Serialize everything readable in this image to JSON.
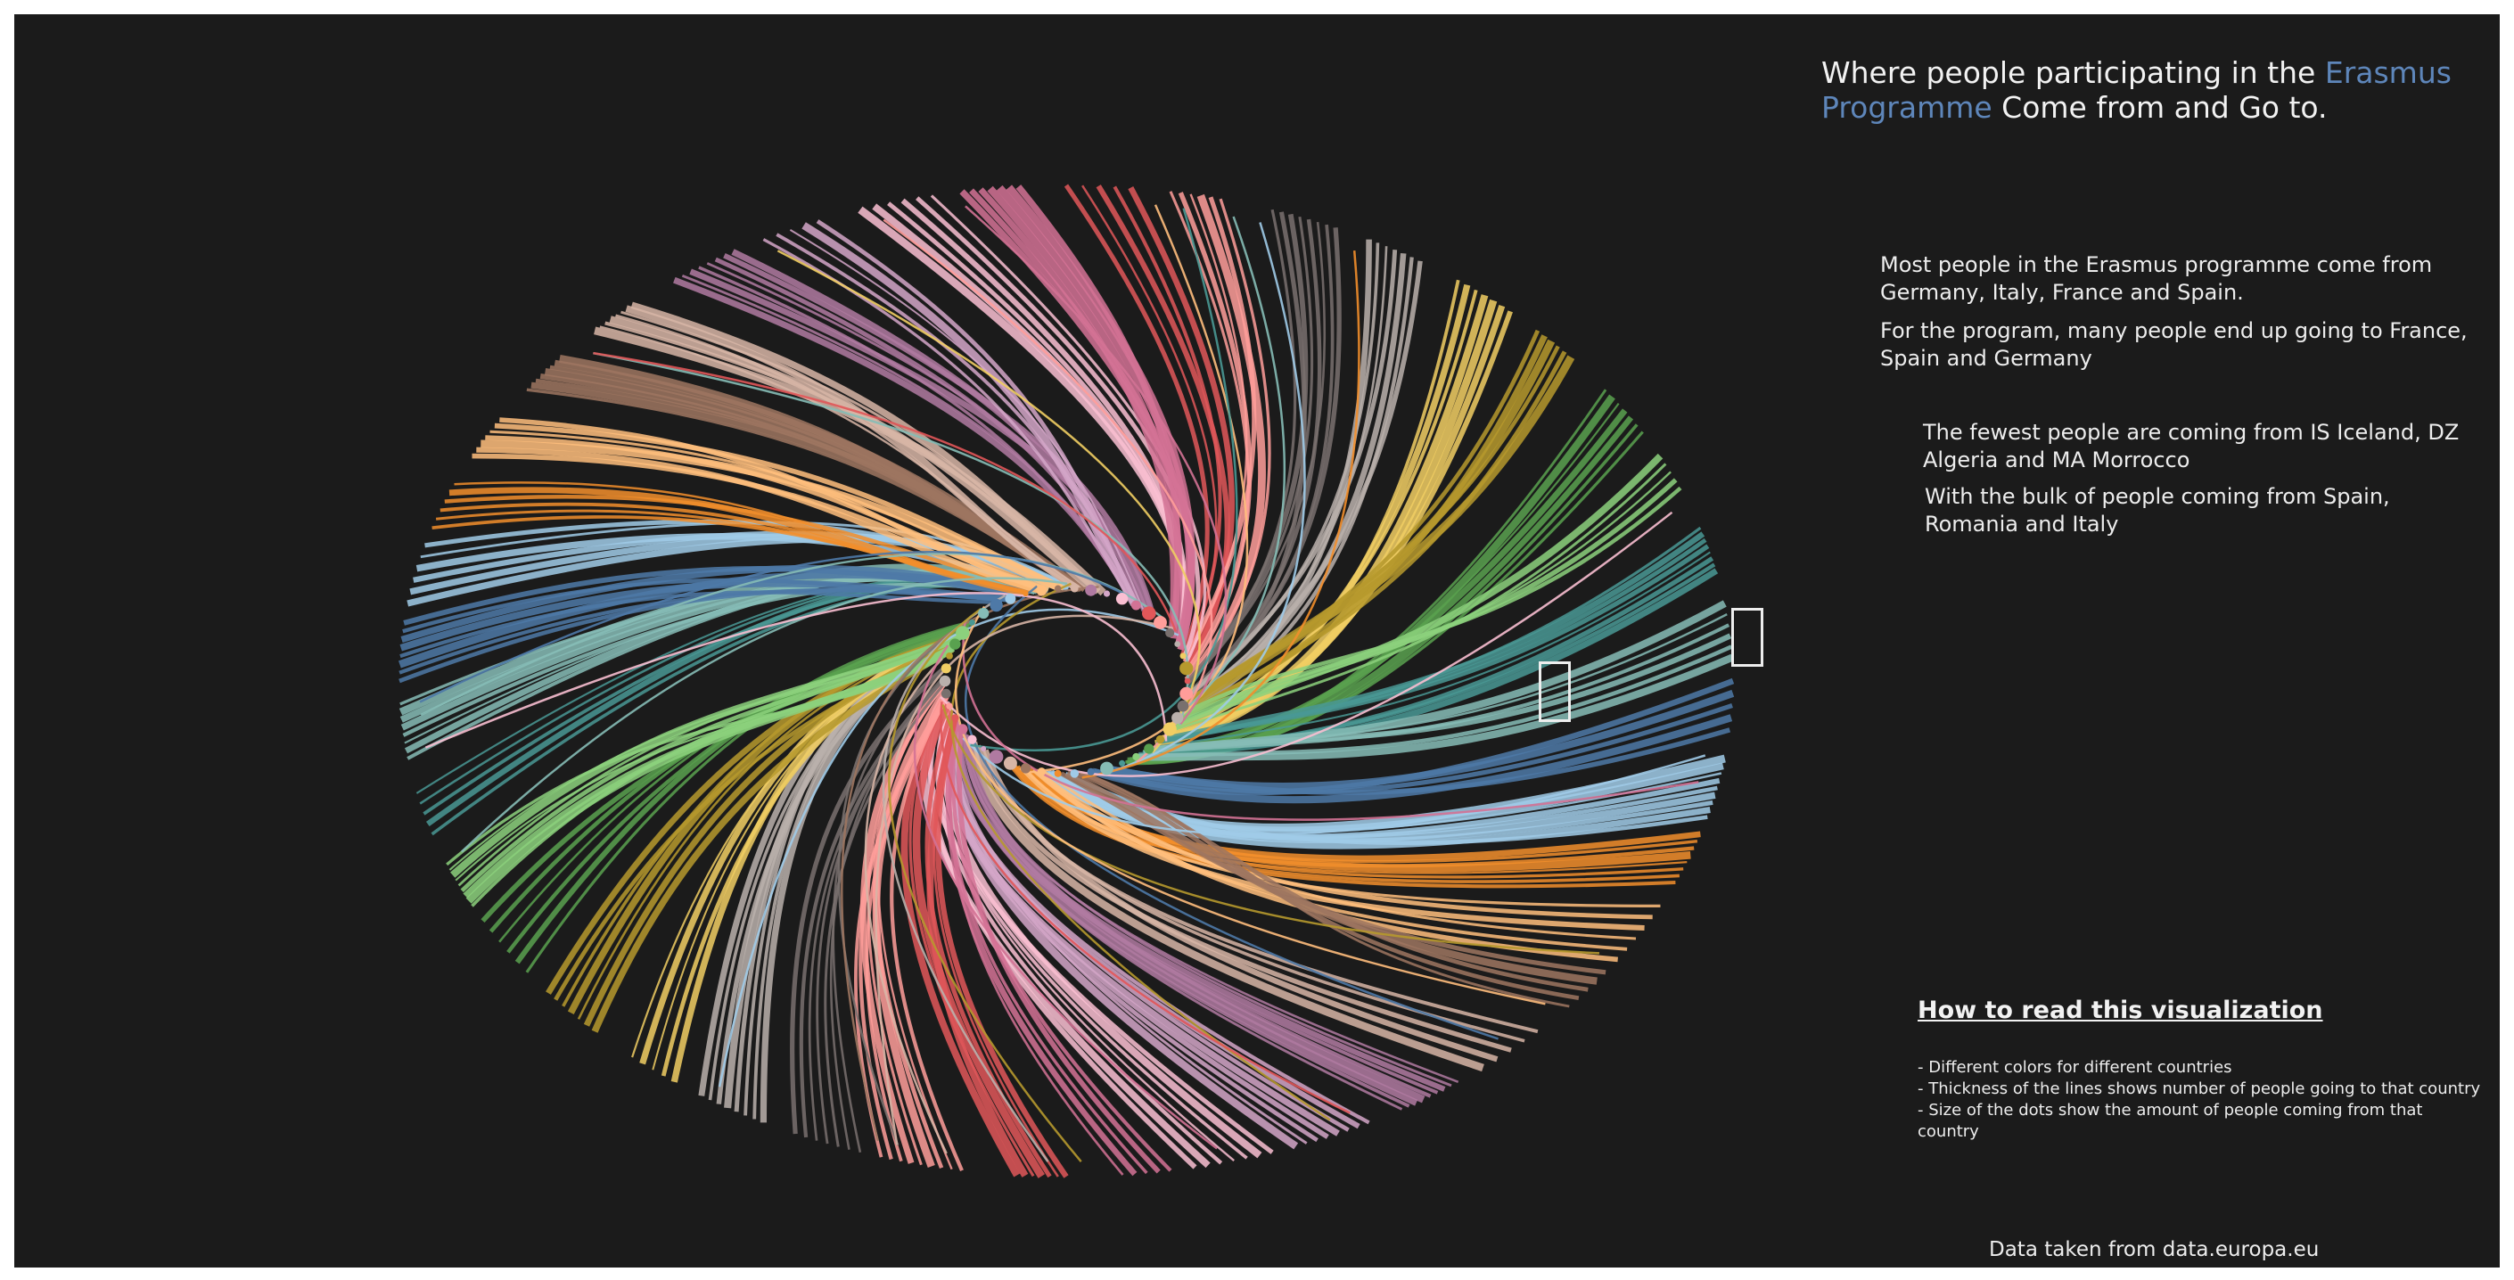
{
  "title": {
    "before": "Where people participating in the ",
    "highlight": "Erasmus Programme",
    "after": " Come from and Go to.",
    "highlight_color": "#5e86ba"
  },
  "paragraphs": [
    "Most people in the Erasmus programme come from Germany, Italy, France and Spain.",
    "For the program, many people end up going to France, Spain and Germany",
    "The fewest people are coming from IS Iceland, DZ Algeria and MA Morrocco",
    "With the bulk of people coming from Spain, Romania and Italy"
  ],
  "howto": {
    "title": "How to read this visualization",
    "items": [
      "- Different colors for different countries",
      "- Thickness of the lines shows number of people going to that country",
      "- Size of the dots show the amount of people coming from that country"
    ]
  },
  "source": "Data taken from data.europa.eu",
  "colors": {
    "background": "#1b1b1b",
    "palette": [
      "#e15759",
      "#ff9d9a",
      "#79706e",
      "#bab0ac",
      "#f1ce63",
      "#b6992d",
      "#59a14f",
      "#8cd17d",
      "#499894",
      "#86bcb6",
      "#4e79a7",
      "#a0cbe8",
      "#f28e2b",
      "#ffbe7d",
      "#9d7660",
      "#d7b5a6",
      "#b07aa1",
      "#d4a6c8",
      "#fabfd2",
      "#d37295"
    ]
  },
  "icons": [
    "missing-glyph-icon",
    "missing-glyph-icon"
  ]
}
